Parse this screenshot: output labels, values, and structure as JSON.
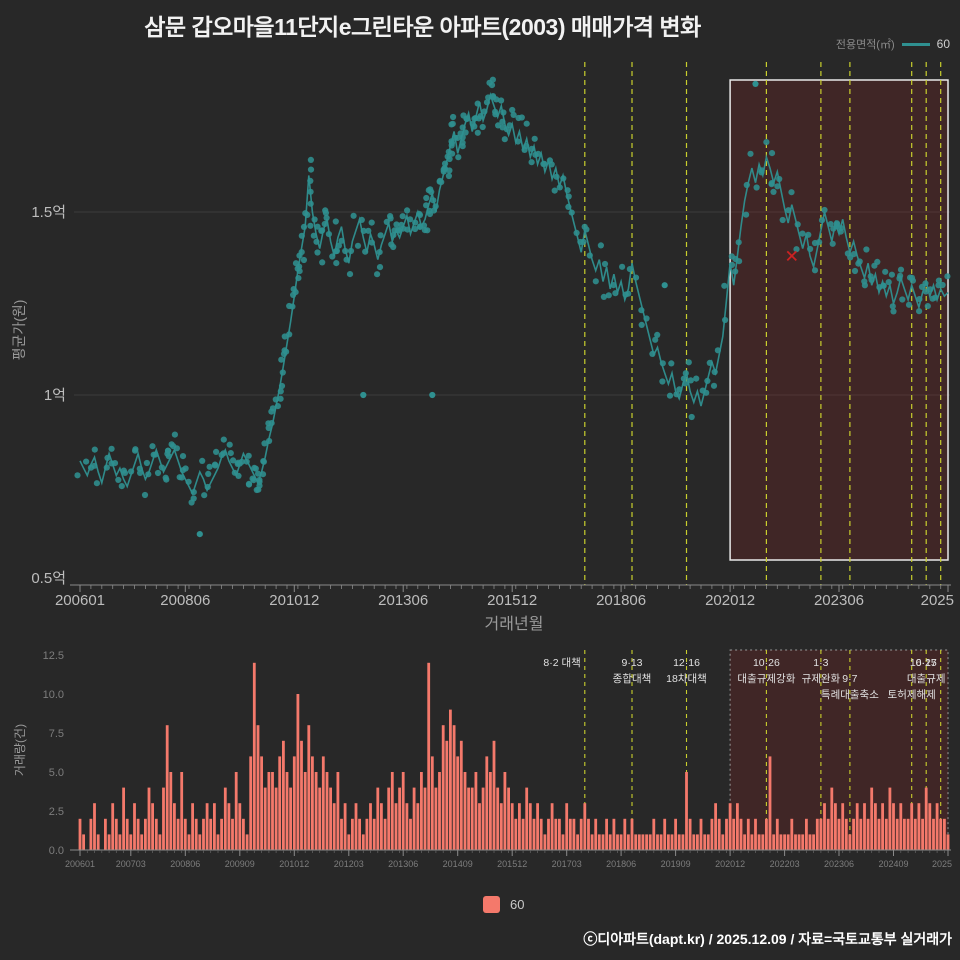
{
  "title": "삼문 갑오마을11단지e그린타운 아파트(2003) 매매가격 변화",
  "top_legend": {
    "label": "전용면적(㎡)",
    "series_name": "60"
  },
  "bottom_legend": {
    "series_name": "60"
  },
  "footer": "ⓒ디아파트(dapt.kr) / 2025.12.09 / 자료=국토교통부 실거래가",
  "colors": {
    "background": "#282828",
    "price_series": "#2f9090",
    "volume_series": "#f4796b",
    "policy_line": "#c9cf2d",
    "highlight_fill": "rgba(150,30,30,0.22)",
    "highlight_stroke_main": "#e8e8e8",
    "highlight_stroke_volume": "#999999",
    "marker_x": "#cc2222",
    "axis": "#8a8a8a",
    "grid": "#3d3d3d",
    "tick_label": "#bdbdbd",
    "tick_label_small": "#7d7d7d",
    "axis_title": "#9a9a9a",
    "annotation_text": "#e0e0e0",
    "title_text": "#f2f2f2"
  },
  "chart_data": [
    {
      "type": "line+scatter",
      "name": "average-sale-price",
      "xlabel": "거래년월",
      "ylabel": "평균가(원)",
      "unit": "억",
      "x_start": "2006-01",
      "x_interval": "month",
      "ylim": [
        0.5,
        2.0
      ],
      "yticks": [
        {
          "v": 1.5,
          "label": "1.5억"
        },
        {
          "v": 1.0,
          "label": "1억"
        },
        {
          "v": 0.5,
          "label": "0.5억"
        }
      ],
      "xticks": [
        {
          "m": 0,
          "label": "200601"
        },
        {
          "m": 29,
          "label": "200806"
        },
        {
          "m": 59,
          "label": "201012"
        },
        {
          "m": 89,
          "label": "201306"
        },
        {
          "m": 119,
          "label": "201512"
        },
        {
          "m": 149,
          "label": "201806"
        },
        {
          "m": 179,
          "label": "202012"
        },
        {
          "m": 209,
          "label": "202306"
        },
        {
          "m": 239,
          "label": "2025"
        }
      ],
      "values": [
        0.82,
        0.8,
        0.78,
        0.81,
        0.83,
        0.79,
        0.76,
        0.8,
        0.84,
        0.81,
        0.78,
        0.8,
        0.77,
        0.75,
        0.78,
        0.81,
        0.84,
        0.8,
        0.77,
        0.79,
        0.82,
        0.85,
        0.82,
        0.79,
        0.81,
        0.83,
        0.85,
        0.82,
        0.79,
        0.77,
        0.75,
        0.73,
        0.76,
        0.79,
        0.77,
        0.74,
        0.76,
        0.78,
        0.8,
        0.83,
        0.85,
        0.82,
        0.8,
        0.78,
        0.81,
        0.84,
        0.82,
        0.8,
        0.78,
        0.76,
        0.79,
        0.83,
        0.88,
        0.92,
        0.97,
        1.02,
        1.08,
        1.14,
        1.2,
        1.27,
        1.34,
        1.4,
        1.46,
        1.6,
        1.5,
        1.44,
        1.4,
        1.45,
        1.48,
        1.42,
        1.38,
        1.43,
        1.46,
        1.4,
        1.36,
        1.42,
        1.45,
        1.48,
        1.43,
        1.39,
        1.44,
        1.41,
        1.37,
        1.41,
        1.44,
        1.47,
        1.42,
        1.45,
        1.43,
        1.46,
        1.49,
        1.44,
        1.47,
        1.5,
        1.46,
        1.48,
        1.52,
        1.55,
        1.5,
        1.56,
        1.6,
        1.64,
        1.68,
        1.72,
        1.66,
        1.7,
        1.74,
        1.77,
        1.72,
        1.76,
        1.8,
        1.75,
        1.78,
        1.82,
        1.79,
        1.76,
        1.79,
        1.74,
        1.71,
        1.74,
        1.69,
        1.72,
        1.67,
        1.7,
        1.65,
        1.68,
        1.63,
        1.66,
        1.61,
        1.64,
        1.59,
        1.62,
        1.57,
        1.6,
        1.55,
        1.51,
        1.47,
        1.43,
        1.39,
        1.45,
        1.41,
        1.37,
        1.34,
        1.37,
        1.31,
        1.35,
        1.29,
        1.33,
        1.28,
        1.31,
        1.26,
        1.29,
        1.36,
        1.31,
        1.27,
        1.23,
        1.19,
        1.15,
        1.11,
        1.13,
        1.09,
        1.06,
        1.03,
        1.06,
        1.01,
        0.99,
        1.03,
        1.06,
        1.01,
        0.98,
        1.01,
        0.97,
        1.01,
        1.05,
        1.09,
        1.06,
        1.11,
        1.16,
        1.26,
        1.36,
        1.3,
        1.38,
        1.46,
        1.53,
        1.58,
        1.62,
        1.58,
        1.63,
        1.6,
        1.65,
        1.62,
        1.58,
        1.61,
        1.56,
        1.51,
        1.47,
        1.52,
        1.48,
        1.44,
        1.4,
        1.44,
        1.38,
        1.35,
        1.4,
        1.45,
        1.5,
        1.46,
        1.42,
        1.47,
        1.44,
        1.48,
        1.43,
        1.39,
        1.42,
        1.38,
        1.35,
        1.32,
        1.36,
        1.3,
        1.33,
        1.28,
        1.31,
        1.27,
        1.3,
        1.25,
        1.28,
        1.32,
        1.29,
        1.26,
        1.3,
        1.27,
        1.24,
        1.28,
        1.31,
        1.27,
        1.3,
        1.26,
        1.29,
        1.27,
        1.28
      ],
      "outliers": [
        {
          "m": 33,
          "v": 0.62
        },
        {
          "m": 78,
          "v": 1.0
        },
        {
          "m": 97,
          "v": 1.0
        },
        {
          "m": 161,
          "v": 1.3
        },
        {
          "m": 186,
          "v": 1.85
        }
      ],
      "marker": {
        "m": 196,
        "v": 1.38,
        "symbol": "x"
      },
      "highlight_span": {
        "from_m": 179,
        "to_m": 239
      }
    },
    {
      "type": "bar",
      "name": "transaction-volume",
      "ylabel": "거래량(건)",
      "ylim": [
        0,
        12.5
      ],
      "yticks": [
        0,
        2.5,
        5,
        7.5,
        10,
        12.5
      ],
      "xticks": [
        {
          "m": 0,
          "label": "200601"
        },
        {
          "m": 14,
          "label": "200703"
        },
        {
          "m": 29,
          "label": "200806"
        },
        {
          "m": 44,
          "label": "200909"
        },
        {
          "m": 59,
          "label": "201012"
        },
        {
          "m": 74,
          "label": "201203"
        },
        {
          "m": 89,
          "label": "201306"
        },
        {
          "m": 104,
          "label": "201409"
        },
        {
          "m": 119,
          "label": "201512"
        },
        {
          "m": 134,
          "label": "201703"
        },
        {
          "m": 149,
          "label": "201806"
        },
        {
          "m": 164,
          "label": "201909"
        },
        {
          "m": 179,
          "label": "202012"
        },
        {
          "m": 194,
          "label": "202203"
        },
        {
          "m": 209,
          "label": "202306"
        },
        {
          "m": 224,
          "label": "202409"
        },
        {
          "m": 239,
          "label": "2025"
        }
      ],
      "values": [
        2,
        1,
        0,
        2,
        3,
        1,
        0,
        2,
        1,
        3,
        2,
        1,
        4,
        2,
        1,
        3,
        2,
        1,
        2,
        4,
        3,
        2,
        1,
        4,
        8,
        5,
        3,
        2,
        5,
        2,
        1,
        3,
        2,
        1,
        2,
        3,
        2,
        3,
        1,
        2,
        4,
        3,
        2,
        5,
        3,
        2,
        1,
        6,
        12,
        8,
        6,
        4,
        5,
        5,
        4,
        6,
        7,
        5,
        4,
        6,
        10,
        7,
        5,
        8,
        6,
        5,
        4,
        6,
        5,
        4,
        3,
        5,
        2,
        3,
        1,
        2,
        3,
        2,
        1,
        2,
        3,
        2,
        4,
        3,
        2,
        4,
        5,
        3,
        4,
        5,
        3,
        2,
        4,
        3,
        5,
        4,
        12,
        6,
        4,
        5,
        8,
        7,
        9,
        8,
        6,
        7,
        5,
        4,
        4,
        5,
        3,
        4,
        6,
        5,
        7,
        4,
        3,
        5,
        4,
        3,
        2,
        3,
        2,
        4,
        3,
        2,
        3,
        2,
        1,
        2,
        3,
        2,
        2,
        1,
        3,
        2,
        2,
        1,
        2,
        3,
        2,
        1,
        2,
        1,
        1,
        2,
        1,
        2,
        1,
        1,
        2,
        1,
        2,
        1,
        1,
        1,
        1,
        1,
        2,
        1,
        1,
        2,
        1,
        1,
        2,
        1,
        1,
        5,
        2,
        1,
        1,
        2,
        1,
        1,
        2,
        3,
        2,
        1,
        2,
        3,
        2,
        3,
        2,
        1,
        2,
        1,
        2,
        1,
        1,
        2,
        6,
        1,
        2,
        1,
        1,
        1,
        2,
        1,
        1,
        1,
        2,
        1,
        1,
        2,
        2,
        3,
        2,
        4,
        3,
        2,
        3,
        2,
        1,
        2,
        3,
        2,
        3,
        2,
        4,
        3,
        2,
        3,
        2,
        4,
        3,
        2,
        3,
        2,
        2,
        3,
        2,
        3,
        2,
        4,
        3,
        2,
        3,
        2,
        2,
        1
      ],
      "highlight_span": {
        "from_m": 179,
        "to_m": 239
      }
    }
  ],
  "policy_events": [
    {
      "m": 139,
      "row1": "8·2 대책",
      "row2": "",
      "row3": "",
      "align": "end"
    },
    {
      "m": 152,
      "row1": "9·13",
      "row2": "종합대책",
      "row3": "",
      "align": "middle"
    },
    {
      "m": 167,
      "row1": "12·16",
      "row2": "18차대책",
      "row3": "",
      "align": "middle"
    },
    {
      "m": 189,
      "row1": "10·26",
      "row2": "대출규제강화",
      "row3": "",
      "align": "middle"
    },
    {
      "m": 204,
      "row1": "1·3",
      "row2": "규제완화",
      "row3": "",
      "align": "middle"
    },
    {
      "m": 212,
      "row1": "",
      "row2": "9·7",
      "row3": "특례대출축소",
      "align": "middle"
    },
    {
      "m": 229,
      "row1": "",
      "row2": "",
      "row3": "토허제해제",
      "align": "middle"
    },
    {
      "m": 233,
      "row1": "6·27",
      "row2": "대출규제",
      "row3": "",
      "align": "middle"
    },
    {
      "m": 237,
      "row1": "10·15",
      "row2": "",
      "row3": "",
      "align": "end"
    }
  ]
}
